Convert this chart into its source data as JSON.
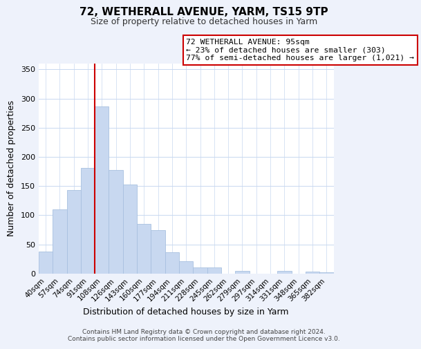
{
  "title": "72, WETHERALL AVENUE, YARM, TS15 9TP",
  "subtitle": "Size of property relative to detached houses in Yarm",
  "xlabel": "Distribution of detached houses by size in Yarm",
  "ylabel": "Number of detached properties",
  "bar_labels": [
    "40sqm",
    "57sqm",
    "74sqm",
    "91sqm",
    "108sqm",
    "126sqm",
    "143sqm",
    "160sqm",
    "177sqm",
    "194sqm",
    "211sqm",
    "228sqm",
    "245sqm",
    "262sqm",
    "279sqm",
    "297sqm",
    "314sqm",
    "331sqm",
    "348sqm",
    "365sqm",
    "382sqm"
  ],
  "bar_values": [
    38,
    110,
    143,
    181,
    286,
    178,
    153,
    85,
    74,
    36,
    21,
    10,
    10,
    0,
    5,
    0,
    0,
    5,
    0,
    3,
    2
  ],
  "bar_color": "#c8d8f0",
  "bar_edge_color": "#a8c0e0",
  "vline_x": 3.5,
  "vline_color": "#cc0000",
  "annotation_text": "72 WETHERALL AVENUE: 95sqm\n← 23% of detached houses are smaller (303)\n77% of semi-detached houses are larger (1,021) →",
  "annotation_box_color": "#ffffff",
  "annotation_box_edge_color": "#cc0000",
  "ylim": [
    0,
    360
  ],
  "yticks": [
    0,
    50,
    100,
    150,
    200,
    250,
    300,
    350
  ],
  "footer": "Contains HM Land Registry data © Crown copyright and database right 2024.\nContains public sector information licensed under the Open Government Licence v3.0.",
  "background_color": "#eef2fb",
  "plot_background_color": "#ffffff",
  "title_fontsize": 11,
  "subtitle_fontsize": 9
}
